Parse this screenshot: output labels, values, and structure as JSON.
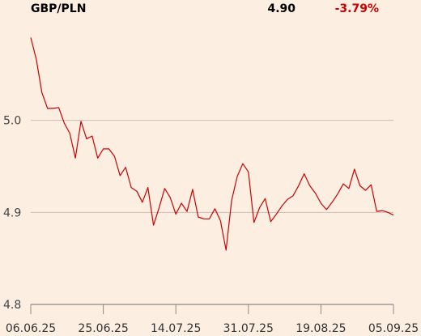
{
  "header": {
    "symbol": "GBP/PLN",
    "price": "4.90",
    "change": "-3.79%",
    "change_color": "#cc0000"
  },
  "chart_data": {
    "type": "line",
    "title": "GBP/PLN",
    "ylim": [
      4.8,
      5.1
    ],
    "yticks": [
      4.8,
      4.9,
      5.0
    ],
    "ytick_labels": [
      "4.8",
      "4.9",
      "5.0"
    ],
    "xtick_labels": [
      "06.06.25",
      "25.06.25",
      "14.07.25",
      "31.07.25",
      "19.08.25",
      "05.09.25"
    ],
    "grid": true,
    "line_color": "#cc0000",
    "series": [
      {
        "values": [
          5.09,
          5.066,
          5.03,
          5.013,
          5.013,
          5.014,
          4.997,
          4.986,
          4.959,
          4.999,
          4.98,
          4.983,
          4.959,
          4.969,
          4.969,
          4.961,
          4.94,
          4.949,
          4.927,
          4.923,
          4.911,
          4.927,
          4.886,
          4.905,
          4.926,
          4.916,
          4.898,
          4.91,
          4.901,
          4.925,
          4.895,
          4.893,
          4.893,
          4.904,
          4.891,
          4.859,
          4.913,
          4.939,
          4.953,
          4.944,
          4.889,
          4.905,
          4.915,
          4.89,
          4.898,
          4.907,
          4.914,
          4.918,
          4.929,
          4.942,
          4.929,
          4.921,
          4.91,
          4.903,
          4.911,
          4.92,
          4.931,
          4.926,
          4.947,
          4.929,
          4.924,
          4.93,
          4.901,
          4.902,
          4.9,
          4.897
        ]
      }
    ]
  }
}
